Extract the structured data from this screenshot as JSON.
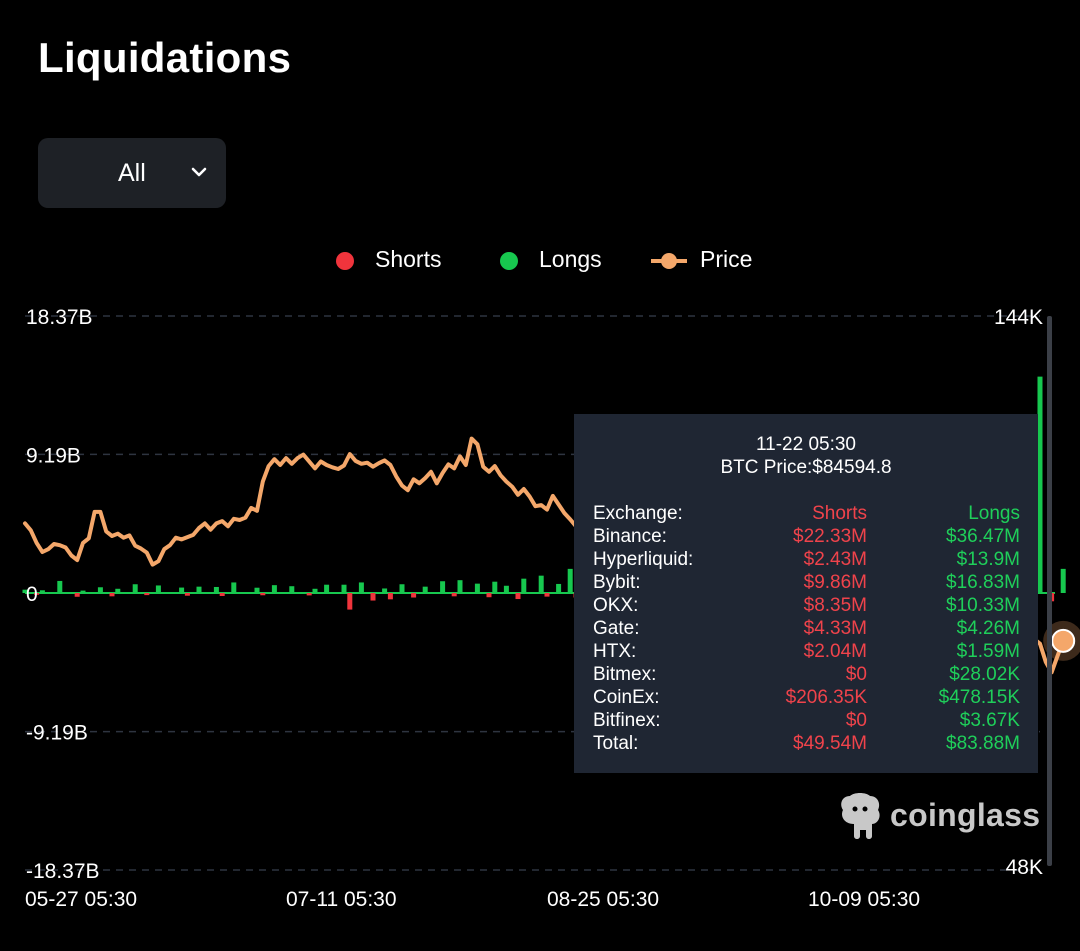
{
  "page": {
    "title": "Liquidations",
    "filter": {
      "selected": "All"
    }
  },
  "colors": {
    "shorts": "#f0343c",
    "longs": "#17c84f",
    "price": "#f4a76a",
    "background": "#000000",
    "tooltip_bg": "#1f2633"
  },
  "icons": {
    "dropdown": "chevron-down-icon",
    "brand": "coinglass-logo-icon"
  },
  "chart_data": {
    "type": "bar",
    "legend": {
      "placement": "top-center",
      "entries": [
        {
          "name": "Shorts",
          "marker": "dot",
          "color": "#f0343c"
        },
        {
          "name": "Longs",
          "marker": "dot",
          "color": "#17c84f"
        },
        {
          "name": "Price",
          "marker": "line-dot",
          "color": "#f4a76a"
        }
      ]
    },
    "left_axis": {
      "ticks": [
        "18.37B",
        "9.19B",
        "0",
        "-9.19B",
        "-18.37B"
      ],
      "values": [
        18.37,
        9.19,
        0,
        -9.19,
        -18.37
      ],
      "unit": "B",
      "ylim": [
        -18.37,
        18.37
      ]
    },
    "right_axis": {
      "ticks": [
        "144K",
        "48K"
      ],
      "values": [
        144000,
        48000
      ],
      "ylim": [
        48000,
        144000
      ]
    },
    "x_ticks": [
      "05-27 05:30",
      "07-11 05:30",
      "08-25 05:30",
      "10-09 05:30"
    ],
    "x_tick_days": [
      0,
      45,
      90,
      135
    ],
    "grid": "horizontal-dashed",
    "series": [
      {
        "name": "Price",
        "kind": "line",
        "axis": "right",
        "x_days": [
          0,
          1,
          2,
          3,
          4,
          5,
          6,
          7,
          8,
          9,
          10,
          11,
          12,
          13,
          14,
          15,
          16,
          17,
          18,
          19,
          20,
          21,
          22,
          23,
          24,
          25,
          26,
          27,
          28,
          29,
          30,
          31,
          32,
          33,
          34,
          35,
          36,
          37,
          38,
          39,
          40,
          41,
          42,
          43,
          44,
          45,
          46,
          47,
          48,
          49,
          50,
          51,
          52,
          53,
          54,
          55,
          56,
          57,
          58,
          59,
          60,
          61,
          62,
          63,
          64,
          65,
          66,
          67,
          68,
          69,
          70,
          71,
          72,
          73,
          74,
          75,
          76,
          77,
          78,
          79,
          80,
          81,
          82,
          83,
          84,
          85,
          86,
          87,
          88,
          89,
          90,
          91,
          92,
          93,
          94,
          95,
          96,
          97,
          98,
          99,
          100,
          101,
          102,
          103,
          104,
          105,
          106,
          107,
          108,
          109,
          110,
          111,
          112,
          113,
          114,
          115,
          116,
          117,
          118,
          119,
          120,
          121,
          122,
          123,
          124,
          125,
          126,
          127,
          128,
          129,
          130,
          131,
          132,
          133,
          134,
          135,
          136,
          137,
          138,
          139,
          140,
          141,
          142,
          143,
          144,
          145,
          146,
          147,
          148,
          149,
          150,
          151,
          152,
          153,
          154,
          155,
          156,
          157,
          158,
          159,
          160,
          161,
          162,
          163,
          164,
          165,
          166,
          167,
          168,
          169,
          170,
          171,
          172,
          173,
          174,
          175,
          176,
          177,
          178,
          179
        ],
        "values": [
          107800,
          106600,
          104400,
          102800,
          103300,
          104200,
          104000,
          103600,
          102200,
          101400,
          104400,
          105200,
          109800,
          109800,
          106400,
          105600,
          106000,
          105300,
          105700,
          103900,
          103400,
          102700,
          100600,
          101200,
          103300,
          104000,
          105300,
          105000,
          105400,
          105800,
          107000,
          107800,
          106700,
          107800,
          108200,
          107300,
          108600,
          108400,
          108800,
          110500,
          110000,
          115100,
          117800,
          119000,
          118000,
          119200,
          118200,
          119200,
          119800,
          118600,
          117400,
          118600,
          118000,
          117600,
          117300,
          117900,
          119900,
          118700,
          118200,
          118400,
          117700,
          118300,
          118800,
          118000,
          116000,
          114400,
          113600,
          115500,
          114800,
          115700,
          116800,
          114800,
          116600,
          118100,
          117400,
          119500,
          118000,
          122600,
          121600,
          117700,
          116800,
          117800,
          116200,
          115100,
          114200,
          112800,
          113800,
          112500,
          110800,
          111000,
          110200,
          112600,
          111100,
          109600,
          108500,
          107300,
          108300,
          110700,
          111300,
          111500,
          112600,
          114400,
          115100,
          116200,
          115800,
          116800,
          115300,
          116800,
          116200,
          115900,
          115200,
          114400,
          113500,
          112800,
          111000,
          109800,
          109100,
          112800,
          111800,
          114100,
          116500,
          117600,
          118800,
          120600,
          121800,
          122100,
          123200,
          123600,
          122900,
          121700,
          121000,
          112300,
          111600,
          113100,
          112800,
          115500,
          114600,
          110900,
          112500,
          111300,
          107000,
          109200,
          108800,
          110700,
          111600,
          113700,
          114600,
          113200,
          111600,
          110700,
          110300,
          108000,
          107100,
          108100,
          106800,
          105200,
          104200,
          101900,
          103000,
          102300,
          103500,
          104800,
          106400,
          104200,
          103600,
          101900,
          99700,
          101300,
          97300,
          95800,
          94600,
          92200,
          91600,
          88500,
          87600,
          86800,
          83600,
          81800,
          84600,
          87300
        ]
      },
      {
        "name": "Longs",
        "kind": "bar",
        "axis": "left",
        "unit": "B",
        "x_days": [
          0,
          3,
          6,
          10,
          13,
          16,
          19,
          23,
          27,
          30,
          33,
          36,
          40,
          43,
          46,
          50,
          52,
          55,
          58,
          62,
          65,
          69,
          72,
          75,
          78,
          81,
          83,
          86,
          89,
          92,
          94,
          97,
          100,
          103,
          105,
          108,
          111,
          114,
          116,
          119,
          122,
          125,
          127,
          130,
          133,
          136,
          139,
          142,
          145,
          148,
          151,
          154,
          157,
          160,
          163,
          166,
          169,
          172,
          175,
          179
        ],
        "values": [
          0.22,
          0.18,
          0.8,
          0.16,
          0.38,
          0.28,
          0.58,
          0.5,
          0.36,
          0.42,
          0.4,
          0.7,
          0.35,
          0.52,
          0.45,
          0.28,
          0.55,
          0.55,
          0.7,
          0.3,
          0.58,
          0.42,
          0.78,
          0.85,
          0.62,
          0.75,
          0.48,
          0.95,
          1.15,
          0.6,
          1.6,
          0.55,
          0.65,
          0.58,
          0.78,
          0.95,
          1.65,
          0.58,
          0.9,
          1.35,
          0.62,
          1.05,
          1.28,
          1.55,
          0.5,
          0.62,
          0.92,
          0.7,
          0.85,
          1.2,
          0.95,
          1.35,
          0.75,
          0.9,
          0.62,
          1.1,
          1.55,
          0.8,
          14.35,
          1.6
        ]
      },
      {
        "name": "Shorts",
        "kind": "bar",
        "axis": "left",
        "unit": "B",
        "x_days": [
          2,
          9,
          15,
          21,
          28,
          34,
          41,
          49,
          56,
          60,
          63,
          67,
          74,
          80,
          85,
          90,
          95,
          99,
          104,
          110,
          113,
          118,
          124,
          129,
          133,
          138,
          144,
          150,
          156,
          162,
          168,
          173,
          177
        ],
        "values": [
          -0.12,
          -0.25,
          -0.22,
          -0.14,
          -0.18,
          -0.2,
          -0.15,
          -0.16,
          -1.1,
          -0.5,
          -0.42,
          -0.3,
          -0.22,
          -0.28,
          -0.4,
          -0.24,
          -0.3,
          -0.28,
          -0.22,
          -0.42,
          -0.25,
          -0.3,
          -0.7,
          -0.35,
          -0.22,
          -0.38,
          -0.52,
          -0.3,
          -0.45,
          -0.35,
          -0.6,
          -0.4,
          -0.55
        ]
      }
    ],
    "tooltip": {
      "date": "11-22 05:30",
      "price_label": "BTC Price:$84594.8",
      "headers": {
        "exchange": "Exchange:",
        "shorts": "Shorts",
        "longs": "Longs"
      },
      "rows": [
        {
          "exchange": "Binance:",
          "shorts": "$22.33M",
          "longs": "$36.47M"
        },
        {
          "exchange": "Hyperliquid:",
          "shorts": "$2.43M",
          "longs": "$13.9M"
        },
        {
          "exchange": "Bybit:",
          "shorts": "$9.86M",
          "longs": "$16.83M"
        },
        {
          "exchange": "OKX:",
          "shorts": "$8.35M",
          "longs": "$10.33M"
        },
        {
          "exchange": "Gate:",
          "shorts": "$4.33M",
          "longs": "$4.26M"
        },
        {
          "exchange": "HTX:",
          "shorts": "$2.04M",
          "longs": "$1.59M"
        },
        {
          "exchange": "Bitmex:",
          "shorts": "$0",
          "longs": "$28.02K"
        },
        {
          "exchange": "CoinEx:",
          "shorts": "$206.35K",
          "longs": "$478.15K"
        },
        {
          "exchange": "Bitfinex:",
          "shorts": "$0",
          "longs": "$3.67K"
        },
        {
          "exchange": "Total:",
          "shorts": "$49.54M",
          "longs": "$83.88M"
        }
      ]
    },
    "watermark": "coinglass"
  }
}
